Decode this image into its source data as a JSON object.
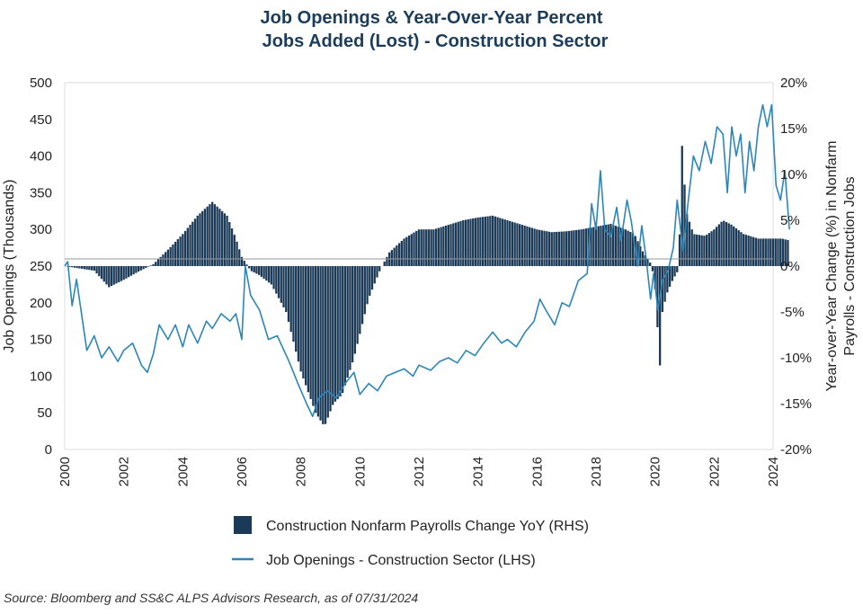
{
  "chart_data": {
    "type": "bar+line",
    "title_line1": "Job Openings & Year-Over-Year Percent",
    "title_line2": "Jobs Added (Lost) - Construction Sector",
    "ylabel_left": "Job Openings (Thousands)",
    "ylabel_right_line1": "Year-over-Year Change (%)  in Nonfarm",
    "ylabel_right_line2": "Payrolls - Construction Jobs",
    "ylim_left": [
      0,
      500
    ],
    "ylim_right": [
      -20,
      20
    ],
    "xlim": [
      2000,
      2024
    ],
    "left_ticks": [
      "0",
      "50",
      "100",
      "150",
      "200",
      "250",
      "300",
      "350",
      "400",
      "450",
      "500"
    ],
    "right_ticks": [
      "-20%",
      "-15%",
      "-10%",
      "-5%",
      "0%",
      "5%",
      "10%",
      "15%",
      "20%"
    ],
    "x_ticks": [
      "2000",
      "2002",
      "2004",
      "2006",
      "2008",
      "2010",
      "2012",
      "2014",
      "2016",
      "2018",
      "2020",
      "2022",
      "2024"
    ],
    "bar_color": "#1b3a57",
    "line_color": "#2c86b9",
    "legend": [
      {
        "label": "Construction Nonfarm Payrolls Change YoY (RHS)",
        "kind": "bar"
      },
      {
        "label": "Job Openings - Construction Sector (LHS)",
        "kind": "line"
      }
    ],
    "series": [
      {
        "name": "Construction Nonfarm Payrolls Change YoY (RHS)",
        "kind": "bar",
        "axis": "right",
        "points": [
          [
            2000.0,
            0
          ],
          [
            2001.0,
            -0.5
          ],
          [
            2001.5,
            -2.3
          ],
          [
            2002.0,
            -1.5
          ],
          [
            2002.5,
            -0.6
          ],
          [
            2003.0,
            0.2
          ],
          [
            2003.5,
            1.8
          ],
          [
            2004.0,
            3.5
          ],
          [
            2004.5,
            5.5
          ],
          [
            2005.0,
            7.0
          ],
          [
            2005.5,
            5.5
          ],
          [
            2005.8,
            3.0
          ],
          [
            2006.0,
            1.0
          ],
          [
            2006.3,
            -0.5
          ],
          [
            2006.6,
            -1.0
          ],
          [
            2007.0,
            -2.0
          ],
          [
            2007.5,
            -5.0
          ],
          [
            2008.0,
            -11.5
          ],
          [
            2008.5,
            -16.0
          ],
          [
            2008.8,
            -17.5
          ],
          [
            2009.1,
            -15.0
          ],
          [
            2009.4,
            -14.0
          ],
          [
            2009.8,
            -10.0
          ],
          [
            2010.3,
            -3.5
          ],
          [
            2010.7,
            -0.3
          ],
          [
            2011.0,
            1.5
          ],
          [
            2011.5,
            3.0
          ],
          [
            2012.0,
            4.0
          ],
          [
            2012.5,
            4.0
          ],
          [
            2013.0,
            4.5
          ],
          [
            2013.5,
            5.0
          ],
          [
            2014.0,
            5.3
          ],
          [
            2014.5,
            5.5
          ],
          [
            2015.0,
            5.0
          ],
          [
            2015.5,
            4.5
          ],
          [
            2016.0,
            4.0
          ],
          [
            2016.5,
            3.7
          ],
          [
            2017.0,
            3.8
          ],
          [
            2017.5,
            4.0
          ],
          [
            2018.0,
            4.3
          ],
          [
            2018.5,
            4.6
          ],
          [
            2019.0,
            4.0
          ],
          [
            2019.3,
            3.5
          ],
          [
            2019.6,
            1.5
          ],
          [
            2019.85,
            0.3
          ],
          [
            2019.95,
            -1.0
          ],
          [
            2020.05,
            -4.0
          ],
          [
            2020.15,
            -12.0
          ],
          [
            2020.25,
            -5.0
          ],
          [
            2020.4,
            -3.0
          ],
          [
            2020.6,
            -1.5
          ],
          [
            2020.8,
            -0.4
          ],
          [
            2020.92,
            13.5
          ],
          [
            2021.05,
            6.0
          ],
          [
            2021.3,
            3.5
          ],
          [
            2021.7,
            3.3
          ],
          [
            2022.0,
            4.0
          ],
          [
            2022.3,
            5.0
          ],
          [
            2022.6,
            4.5
          ],
          [
            2023.0,
            3.5
          ],
          [
            2023.5,
            3.0
          ],
          [
            2024.0,
            3.0
          ],
          [
            2024.3,
            3.0
          ],
          [
            2024.55,
            2.8
          ]
        ]
      },
      {
        "name": "Job Openings - Construction Sector (LHS)",
        "kind": "line",
        "axis": "left",
        "points": [
          [
            2000.0,
            250
          ],
          [
            2000.1,
            256
          ],
          [
            2000.25,
            196
          ],
          [
            2000.4,
            232
          ],
          [
            2000.55,
            190
          ],
          [
            2000.75,
            135
          ],
          [
            2001.0,
            155
          ],
          [
            2001.25,
            125
          ],
          [
            2001.5,
            140
          ],
          [
            2001.8,
            120
          ],
          [
            2002.0,
            135
          ],
          [
            2002.3,
            145
          ],
          [
            2002.6,
            115
          ],
          [
            2002.8,
            105
          ],
          [
            2003.0,
            130
          ],
          [
            2003.2,
            170
          ],
          [
            2003.5,
            150
          ],
          [
            2003.75,
            170
          ],
          [
            2004.0,
            140
          ],
          [
            2004.2,
            170
          ],
          [
            2004.5,
            145
          ],
          [
            2004.8,
            175
          ],
          [
            2005.0,
            165
          ],
          [
            2005.3,
            185
          ],
          [
            2005.6,
            175
          ],
          [
            2005.8,
            185
          ],
          [
            2006.0,
            150
          ],
          [
            2006.12,
            250
          ],
          [
            2006.3,
            210
          ],
          [
            2006.6,
            190
          ],
          [
            2006.9,
            150
          ],
          [
            2007.2,
            155
          ],
          [
            2007.6,
            120
          ],
          [
            2007.9,
            90
          ],
          [
            2008.2,
            62
          ],
          [
            2008.4,
            45
          ],
          [
            2008.6,
            70
          ],
          [
            2008.9,
            80
          ],
          [
            2009.2,
            70
          ],
          [
            2009.5,
            90
          ],
          [
            2009.8,
            105
          ],
          [
            2010.0,
            75
          ],
          [
            2010.3,
            90
          ],
          [
            2010.6,
            80
          ],
          [
            2010.9,
            100
          ],
          [
            2011.2,
            105
          ],
          [
            2011.5,
            110
          ],
          [
            2011.8,
            100
          ],
          [
            2012.0,
            115
          ],
          [
            2012.4,
            108
          ],
          [
            2012.7,
            120
          ],
          [
            2013.0,
            125
          ],
          [
            2013.3,
            118
          ],
          [
            2013.6,
            135
          ],
          [
            2013.9,
            128
          ],
          [
            2014.2,
            145
          ],
          [
            2014.5,
            160
          ],
          [
            2014.8,
            145
          ],
          [
            2015.0,
            150
          ],
          [
            2015.3,
            140
          ],
          [
            2015.6,
            160
          ],
          [
            2015.9,
            175
          ],
          [
            2016.1,
            205
          ],
          [
            2016.3,
            190
          ],
          [
            2016.6,
            170
          ],
          [
            2016.85,
            200
          ],
          [
            2017.1,
            195
          ],
          [
            2017.4,
            230
          ],
          [
            2017.7,
            240
          ],
          [
            2017.85,
            335
          ],
          [
            2018.0,
            300
          ],
          [
            2018.15,
            380
          ],
          [
            2018.3,
            300
          ],
          [
            2018.5,
            290
          ],
          [
            2018.7,
            330
          ],
          [
            2018.85,
            285
          ],
          [
            2019.05,
            340
          ],
          [
            2019.2,
            310
          ],
          [
            2019.4,
            250
          ],
          [
            2019.55,
            305
          ],
          [
            2019.7,
            260
          ],
          [
            2019.85,
            205
          ],
          [
            2019.95,
            240
          ],
          [
            2020.1,
            190
          ],
          [
            2020.25,
            230
          ],
          [
            2020.45,
            245
          ],
          [
            2020.62,
            275
          ],
          [
            2020.75,
            340
          ],
          [
            2020.95,
            270
          ],
          [
            2021.1,
            330
          ],
          [
            2021.3,
            400
          ],
          [
            2021.5,
            380
          ],
          [
            2021.7,
            420
          ],
          [
            2021.9,
            390
          ],
          [
            2022.1,
            440
          ],
          [
            2022.3,
            430
          ],
          [
            2022.45,
            350
          ],
          [
            2022.6,
            440
          ],
          [
            2022.75,
            400
          ],
          [
            2022.9,
            430
          ],
          [
            2023.05,
            350
          ],
          [
            2023.2,
            420
          ],
          [
            2023.35,
            380
          ],
          [
            2023.5,
            440
          ],
          [
            2023.65,
            470
          ],
          [
            2023.8,
            440
          ],
          [
            2023.95,
            470
          ],
          [
            2024.1,
            360
          ],
          [
            2024.25,
            340
          ],
          [
            2024.4,
            380
          ],
          [
            2024.55,
            300
          ]
        ]
      }
    ],
    "source": "Source: Bloomberg and SS&C ALPS Advisors Research, as of 07/31/2024"
  }
}
